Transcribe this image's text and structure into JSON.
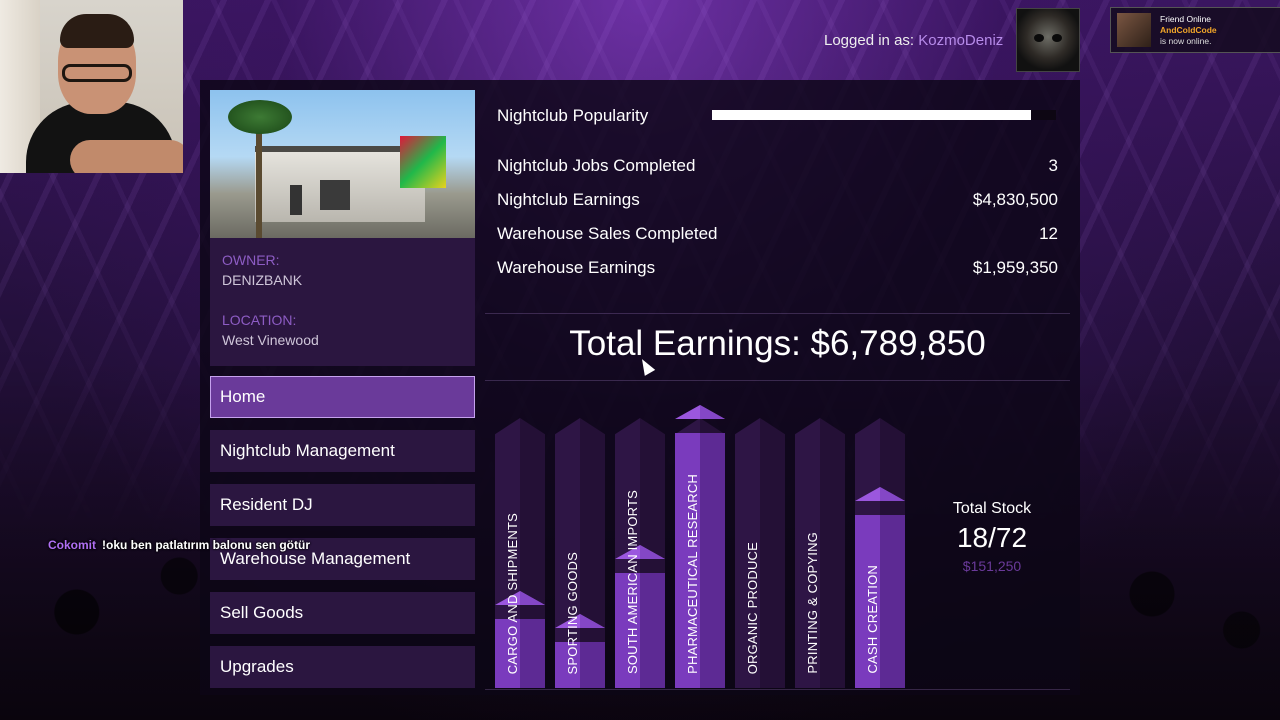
{
  "header": {
    "logged_in_prefix": "Logged in as:",
    "username": "KozmoDeniz"
  },
  "notification": {
    "line1": "Friend Online",
    "friend": "AndColdCode",
    "line3": "is now online."
  },
  "property": {
    "owner_label": "OWNER:",
    "owner": "DENIZBANK",
    "location_label": "LOCATION:",
    "location": "West Vinewood"
  },
  "menu": [
    {
      "label": "Home",
      "active": true
    },
    {
      "label": "Nightclub Management",
      "active": false
    },
    {
      "label": "Resident DJ",
      "active": false
    },
    {
      "label": "Warehouse Management",
      "active": false
    },
    {
      "label": "Sell Goods",
      "active": false
    },
    {
      "label": "Upgrades",
      "active": false
    }
  ],
  "stats": {
    "popularity_label": "Nightclub Popularity",
    "popularity_fraction": 0.96,
    "rows": [
      {
        "label": "Nightclub Jobs Completed",
        "value": "3"
      },
      {
        "label": "Nightclub Earnings",
        "value": "$4,830,500"
      },
      {
        "label": "Warehouse Sales Completed",
        "value": "12"
      },
      {
        "label": "Warehouse Earnings",
        "value": "$1,959,350"
      }
    ],
    "total_earnings": "Total Earnings: $6,789,850"
  },
  "chart_data": {
    "type": "bar",
    "categories": [
      "CARGO AND SHIPMENTS",
      "SPORTING GOODS",
      "SOUTH AMERICAN IMPORTS",
      "PHARMACEUTICAL RESEARCH",
      "ORGANIC PRODUCE",
      "PRINTING & COPYING",
      "CASH CREATION"
    ],
    "values": [
      0.27,
      0.18,
      0.45,
      1.0,
      0,
      0,
      0.68
    ],
    "ylim": [
      0,
      1
    ]
  },
  "stock": {
    "label": "Total Stock",
    "value": "18/72",
    "money": "$151,250"
  },
  "chat": {
    "user": "Cokomit",
    "message": "!oku ben patlatırım balonu sen götür"
  },
  "colors": {
    "accent": "#6a3a9a",
    "bar_fill": "#7a3bbd",
    "username": "#b78bea",
    "notif_name": "#f2a629"
  }
}
